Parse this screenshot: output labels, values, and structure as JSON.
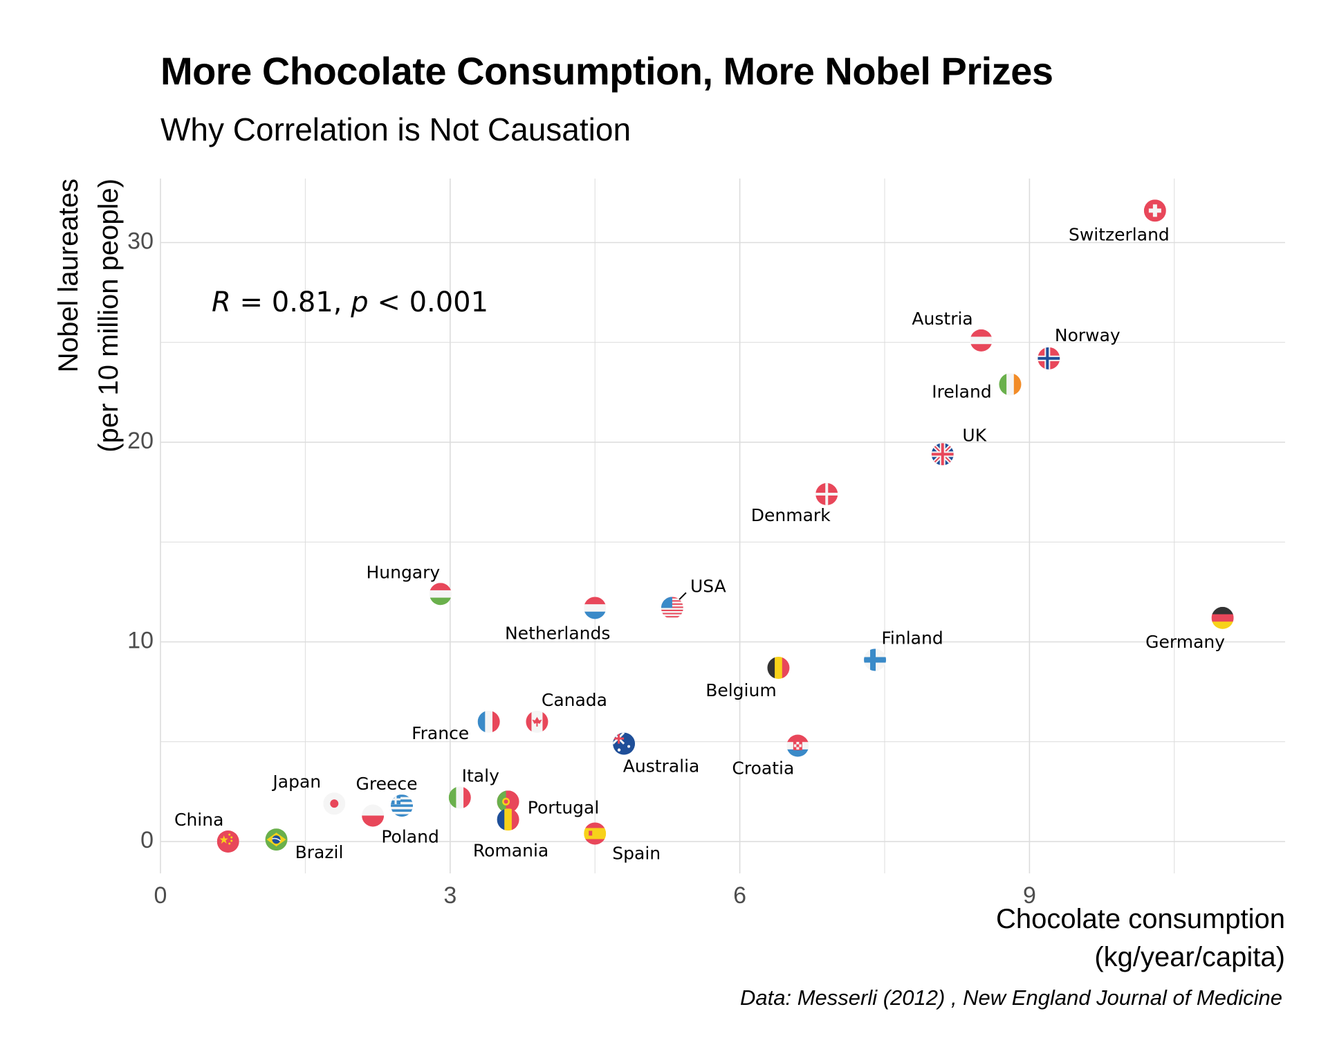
{
  "title": "More Chocolate Consumption, More Nobel Prizes",
  "subtitle": "Why Correlation is Not Causation",
  "caption": "Data: Messerli (2012) , New England Journal of Medicine",
  "colors": {
    "red": "#e8475a",
    "white": "#f5f5f5",
    "blue": "#3a8ac8",
    "darkblue": "#1f4f99",
    "green": "#6ab04c",
    "black": "#333333",
    "yellow": "#f7d21a",
    "orange": "#f28c28",
    "grid": "#dcdcdc"
  },
  "chart_data": {
    "type": "scatter",
    "xlabel": [
      "Chocolate consumption",
      "(kg/year/capita)"
    ],
    "ylabel": [
      "Nobel laureates",
      "(per 10 million people)"
    ],
    "xlim": [
      0,
      11.6
    ],
    "ylim": [
      -1.5,
      33
    ],
    "xticks": [
      0,
      3,
      6,
      9
    ],
    "yticks": [
      0,
      10,
      20,
      30
    ],
    "stat": {
      "r_label": "R",
      "r_value": "0.81",
      "p_label": "p",
      "p_value": "0.001"
    },
    "points": [
      {
        "country": "Switzerland",
        "x": 10.3,
        "y": 31.6,
        "flag": "switzerland"
      },
      {
        "country": "Austria",
        "x": 8.5,
        "y": 25.1,
        "flag": "austria"
      },
      {
        "country": "Norway",
        "x": 9.2,
        "y": 24.2,
        "flag": "norway"
      },
      {
        "country": "Ireland",
        "x": 8.8,
        "y": 22.9,
        "flag": "ireland"
      },
      {
        "country": "UK",
        "x": 8.1,
        "y": 19.4,
        "flag": "uk"
      },
      {
        "country": "Denmark",
        "x": 6.9,
        "y": 17.4,
        "flag": "denmark"
      },
      {
        "country": "Hungary",
        "x": 2.9,
        "y": 12.4,
        "flag": "hungary"
      },
      {
        "country": "Netherlands",
        "x": 4.5,
        "y": 11.7,
        "flag": "netherlands"
      },
      {
        "country": "USA",
        "x": 5.3,
        "y": 11.7,
        "flag": "usa"
      },
      {
        "country": "Germany",
        "x": 11.0,
        "y": 11.2,
        "flag": "germany"
      },
      {
        "country": "Finland",
        "x": 7.4,
        "y": 9.1,
        "flag": "finland"
      },
      {
        "country": "Belgium",
        "x": 6.4,
        "y": 8.7,
        "flag": "belgium"
      },
      {
        "country": "France",
        "x": 3.4,
        "y": 6.0,
        "flag": "france"
      },
      {
        "country": "Canada",
        "x": 3.9,
        "y": 6.0,
        "flag": "canada"
      },
      {
        "country": "Australia",
        "x": 4.8,
        "y": 4.9,
        "flag": "australia"
      },
      {
        "country": "Croatia",
        "x": 6.6,
        "y": 4.8,
        "flag": "croatia"
      },
      {
        "country": "Japan",
        "x": 1.8,
        "y": 1.9,
        "flag": "japan"
      },
      {
        "country": "Greece",
        "x": 2.5,
        "y": 1.8,
        "flag": "greece"
      },
      {
        "country": "Italy",
        "x": 3.1,
        "y": 2.2,
        "flag": "italy"
      },
      {
        "country": "Portugal",
        "x": 3.6,
        "y": 2.0,
        "flag": "portugal"
      },
      {
        "country": "Poland",
        "x": 2.2,
        "y": 1.3,
        "flag": "poland"
      },
      {
        "country": "Romania",
        "x": 3.6,
        "y": 1.1,
        "flag": "romania"
      },
      {
        "country": "Spain",
        "x": 4.5,
        "y": 0.4,
        "flag": "spain"
      },
      {
        "country": "China",
        "x": 0.7,
        "y": 0.0,
        "flag": "china"
      },
      {
        "country": "Brazil",
        "x": 1.2,
        "y": 0.1,
        "flag": "brazil"
      }
    ]
  }
}
